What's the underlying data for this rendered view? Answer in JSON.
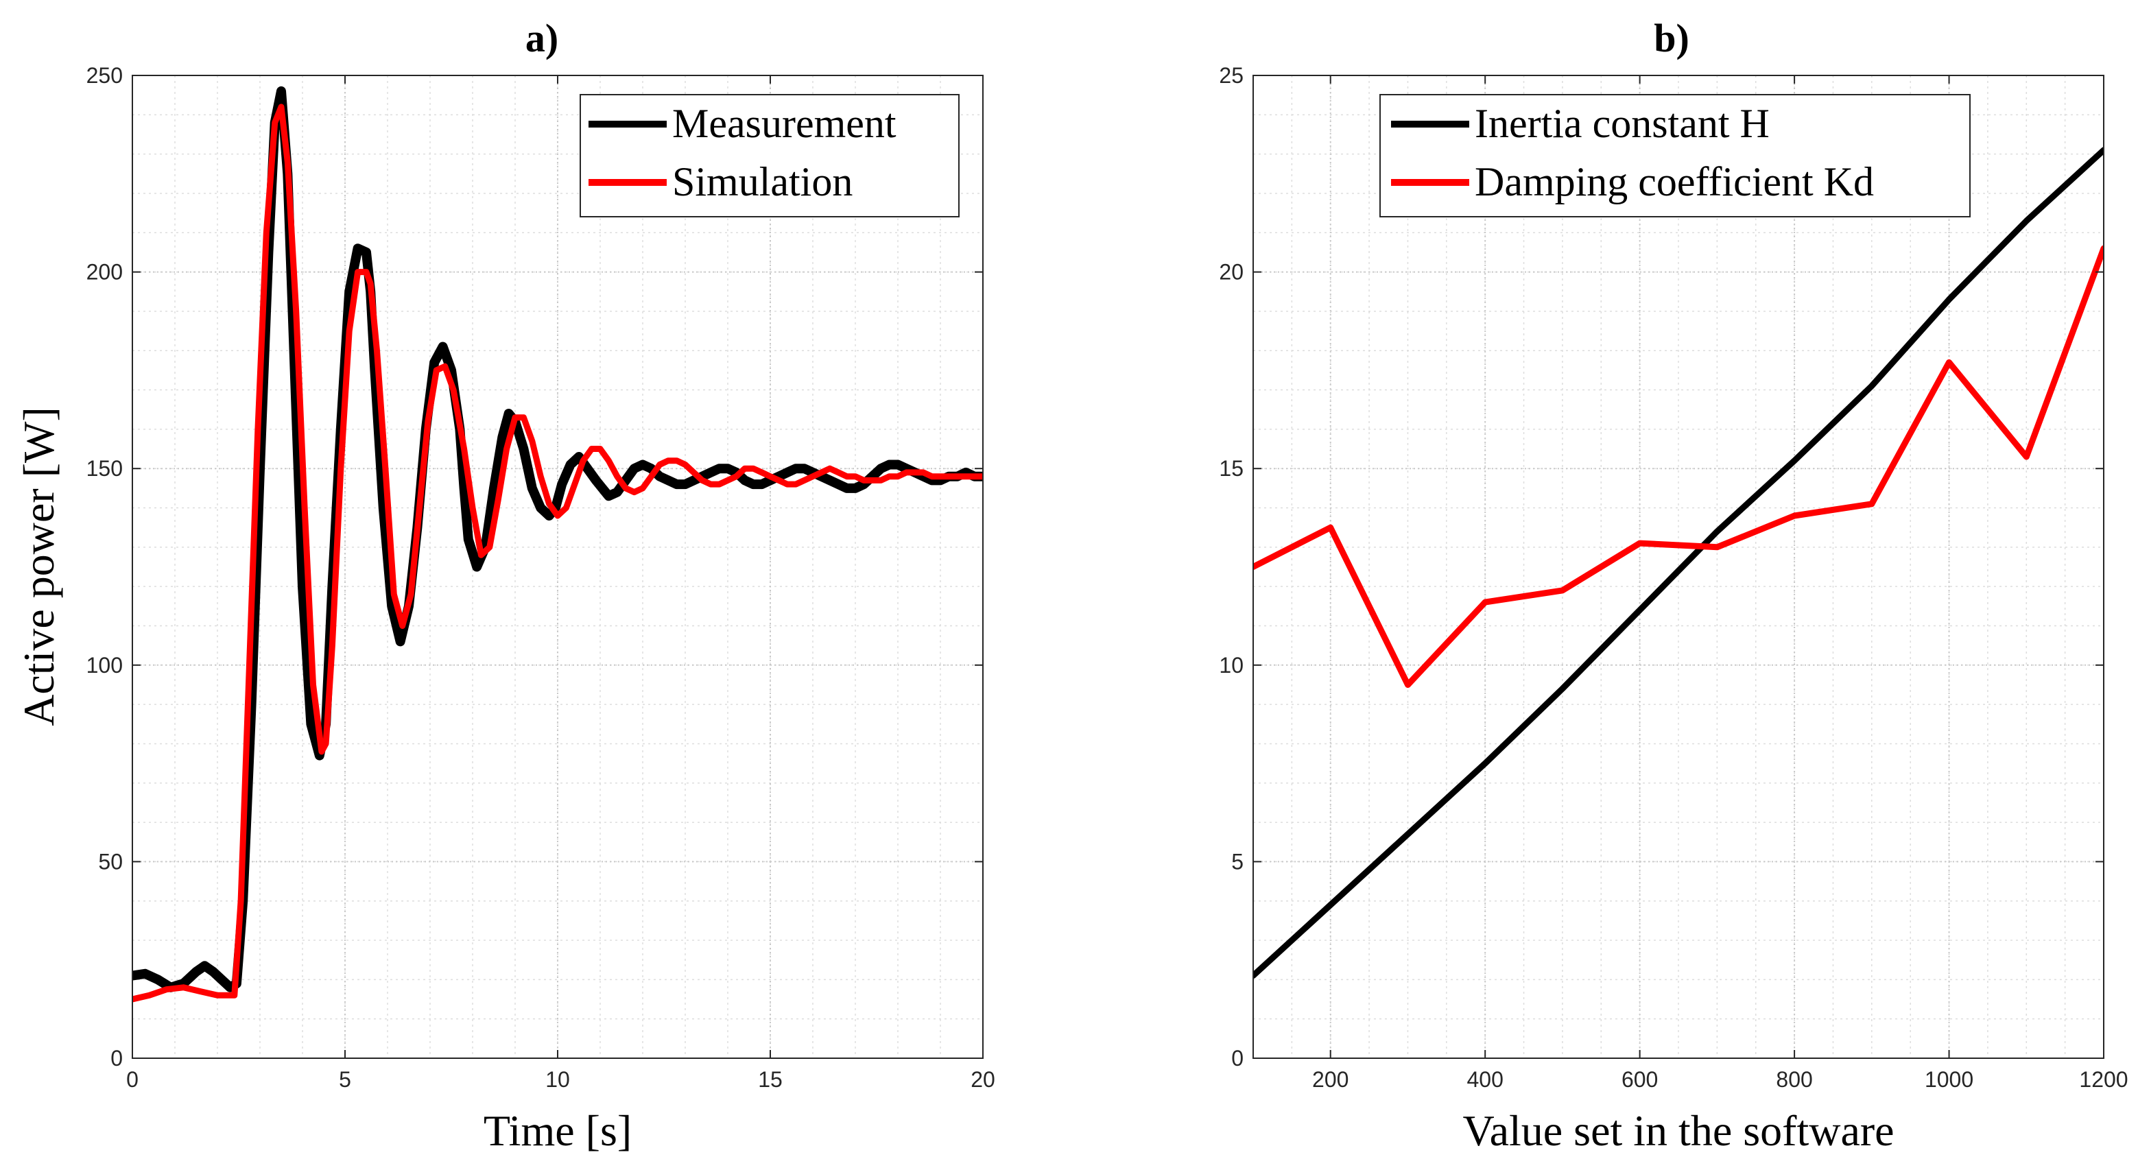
{
  "chart_data": [
    {
      "type": "line",
      "panel": "a",
      "title": "a)",
      "xlabel": "Time [s]",
      "ylabel": "Active power [W]",
      "xlim": [
        0,
        20
      ],
      "ylim": [
        0,
        250
      ],
      "xticks": [
        0,
        5,
        10,
        15,
        20
      ],
      "yticks": [
        0,
        50,
        100,
        150,
        200,
        250
      ],
      "grid": true,
      "minor_grid": true,
      "legend_position": "top-right",
      "series": [
        {
          "name": "Measurement",
          "color": "#000000",
          "x": [
            0,
            0.3,
            0.6,
            0.9,
            1.2,
            1.5,
            1.7,
            1.9,
            2.1,
            2.3,
            2.45,
            2.6,
            2.8,
            3.0,
            3.2,
            3.35,
            3.5,
            3.65,
            3.8,
            4.0,
            4.2,
            4.4,
            4.55,
            4.7,
            4.9,
            5.1,
            5.3,
            5.5,
            5.6,
            5.7,
            5.9,
            6.1,
            6.3,
            6.5,
            6.7,
            6.9,
            7.1,
            7.3,
            7.5,
            7.7,
            7.8,
            7.9,
            8.1,
            8.3,
            8.5,
            8.7,
            8.85,
            9.0,
            9.2,
            9.4,
            9.6,
            9.8,
            9.95,
            10.1,
            10.3,
            10.5,
            10.7,
            10.9,
            11.05,
            11.2,
            11.4,
            11.6,
            11.8,
            12.0,
            12.2,
            12.4,
            12.6,
            12.8,
            13.0,
            13.2,
            13.4,
            13.6,
            13.8,
            14.0,
            14.2,
            14.4,
            14.6,
            14.8,
            15.0,
            15.2,
            15.4,
            15.6,
            15.8,
            16.0,
            16.2,
            16.4,
            16.6,
            16.8,
            17.0,
            17.2,
            17.4,
            17.6,
            17.8,
            18.0,
            18.2,
            18.4,
            18.6,
            18.8,
            19.0,
            19.2,
            19.4,
            19.6,
            19.8,
            20.0
          ],
          "values": [
            21,
            21.5,
            20,
            18,
            19,
            22,
            23.5,
            22,
            20,
            18,
            19,
            40,
            90,
            150,
            205,
            238,
            246,
            225,
            180,
            120,
            85,
            77,
            85,
            120,
            160,
            195,
            206,
            205,
            195,
            175,
            140,
            115,
            106,
            115,
            135,
            160,
            177,
            181,
            175,
            160,
            145,
            132,
            125,
            130,
            145,
            158,
            164,
            162,
            155,
            145,
            140,
            138,
            140,
            146,
            151,
            153,
            150,
            147,
            145,
            143,
            144,
            147,
            150,
            151,
            150,
            148,
            147,
            146,
            146,
            147,
            148,
            149,
            150,
            150,
            149,
            147,
            146,
            146,
            147,
            148,
            149,
            150,
            150,
            149,
            148,
            147,
            146,
            145,
            145,
            146,
            148,
            150,
            151,
            151,
            150,
            149,
            148,
            147,
            147,
            148,
            148,
            149,
            148,
            148
          ]
        },
        {
          "name": "Simulation",
          "color": "#ff0000",
          "x": [
            0,
            0.4,
            0.8,
            1.2,
            1.6,
            2.0,
            2.4,
            2.55,
            2.75,
            2.95,
            3.15,
            3.35,
            3.5,
            3.65,
            3.85,
            4.05,
            4.25,
            4.45,
            4.55,
            4.7,
            4.9,
            5.1,
            5.3,
            5.5,
            5.6,
            5.75,
            5.95,
            6.15,
            6.35,
            6.55,
            6.75,
            6.95,
            7.15,
            7.35,
            7.55,
            7.75,
            7.8,
            8.0,
            8.2,
            8.4,
            8.6,
            8.8,
            9.0,
            9.2,
            9.4,
            9.6,
            9.8,
            10.0,
            10.2,
            10.4,
            10.6,
            10.8,
            11.0,
            11.2,
            11.4,
            11.6,
            11.8,
            12.0,
            12.2,
            12.4,
            12.6,
            12.8,
            13.0,
            13.2,
            13.4,
            13.6,
            13.8,
            14.0,
            14.2,
            14.4,
            14.6,
            14.8,
            15.0,
            15.2,
            15.4,
            15.6,
            15.8,
            16.0,
            16.2,
            16.4,
            16.6,
            16.8,
            17.0,
            17.2,
            17.4,
            17.6,
            17.8,
            18.0,
            18.2,
            18.4,
            18.6,
            18.8,
            19.0,
            19.2,
            19.4,
            19.6,
            19.8,
            20.0
          ],
          "values": [
            15,
            16,
            17.5,
            18,
            17,
            16,
            16,
            40,
            100,
            160,
            210,
            238,
            242,
            228,
            190,
            140,
            95,
            78,
            80,
            105,
            150,
            185,
            200,
            200,
            197,
            180,
            150,
            118,
            110,
            118,
            140,
            162,
            175,
            176,
            170,
            158,
            155,
            140,
            128,
            130,
            142,
            155,
            163,
            163,
            157,
            148,
            141,
            138,
            140,
            146,
            152,
            155,
            155,
            152,
            148,
            145,
            144,
            145,
            148,
            151,
            152,
            152,
            151,
            149,
            147,
            146,
            146,
            147,
            148,
            150,
            150,
            149,
            148,
            147,
            146,
            146,
            147,
            148,
            149,
            150,
            149,
            148,
            148,
            147,
            147,
            147,
            148,
            148,
            149,
            149,
            149,
            148,
            148,
            148,
            148,
            148,
            148,
            148
          ]
        }
      ]
    },
    {
      "type": "line",
      "panel": "b",
      "title": "b)",
      "xlabel": "Value set in the software",
      "ylabel": "",
      "xlim": [
        100,
        1200
      ],
      "ylim": [
        0,
        25
      ],
      "xticks": [
        200,
        400,
        600,
        800,
        1000,
        1200
      ],
      "yticks": [
        0,
        5,
        10,
        15,
        20,
        25
      ],
      "grid": true,
      "minor_grid": true,
      "legend_position": "top-left",
      "series": [
        {
          "name": "Inertia constant H",
          "color": "#000000",
          "x": [
            100,
            200,
            300,
            400,
            500,
            600,
            700,
            800,
            900,
            1000,
            1100,
            1200
          ],
          "values": [
            2.1,
            3.9,
            5.7,
            7.5,
            9.4,
            11.4,
            13.4,
            15.2,
            17.1,
            19.3,
            21.3,
            23.1
          ]
        },
        {
          "name": "Damping coefficient Kd",
          "color": "#ff0000",
          "x": [
            100,
            200,
            300,
            400,
            500,
            600,
            700,
            800,
            900,
            1000,
            1100,
            1200
          ],
          "values": [
            12.5,
            13.5,
            9.5,
            11.6,
            11.9,
            13.1,
            13.0,
            13.8,
            14.1,
            17.7,
            15.3,
            20.6
          ]
        }
      ]
    }
  ]
}
